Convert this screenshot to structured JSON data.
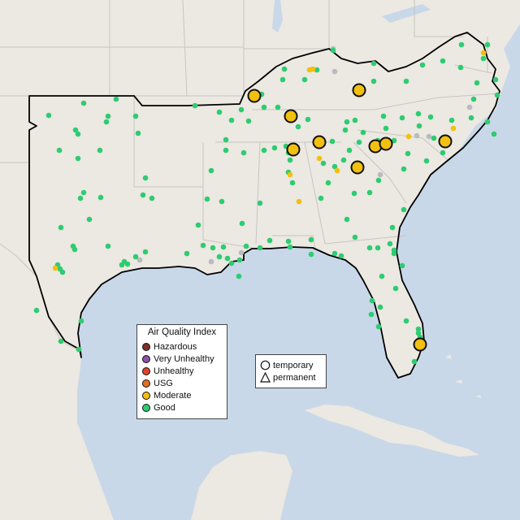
{
  "map": {
    "colors": {
      "ocean": "#c8d8e8",
      "land": "#ece8e2",
      "border": "#c8c4c0",
      "region_outline": "#000000"
    }
  },
  "aqi_legend": {
    "title": "Air Quality Index",
    "categories": [
      {
        "label": "Hazardous",
        "color": "#7e2f2f"
      },
      {
        "label": "Very Unhealthy",
        "color": "#8e4ea6"
      },
      {
        "label": "Unhealthy",
        "color": "#e0432b"
      },
      {
        "label": "USG",
        "color": "#e07020"
      },
      {
        "label": "Moderate",
        "color": "#f2c00f"
      },
      {
        "label": "Good",
        "color": "#2ecc71"
      }
    ]
  },
  "shape_legend": {
    "items": [
      {
        "label": "temporary",
        "shape": "circle-icon"
      },
      {
        "label": "permanent",
        "shape": "triangle-icon"
      }
    ]
  }
}
